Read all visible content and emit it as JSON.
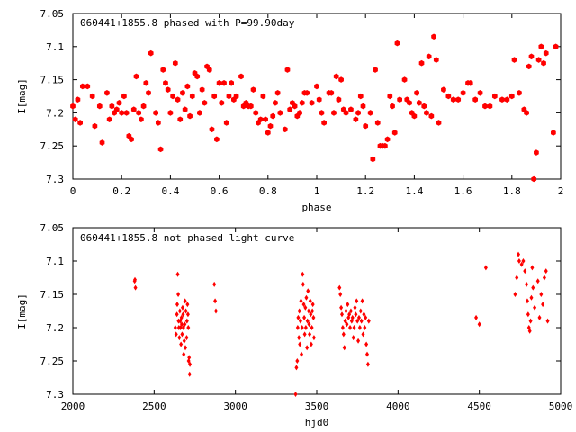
{
  "colors": {
    "points": "#ff0000",
    "axes": "#000000",
    "background": "#ffffff"
  },
  "chart_data": [
    {
      "type": "scatter",
      "title": "060441+1855.8 phased with P=99.90day",
      "xlabel": "phase",
      "ylabel": "I[mag]",
      "xlim": [
        0,
        2
      ],
      "ylim": [
        7.05,
        7.3
      ],
      "y_inverted": true,
      "grid": false,
      "marker": "filled-hexagon",
      "x_ticks": [
        0,
        0.2,
        0.4,
        0.6,
        0.8,
        1,
        1.2,
        1.4,
        1.6,
        1.8,
        2
      ],
      "x_tick_labels": [
        "0",
        "0.2",
        "0.4",
        "0.6",
        "0.8",
        "1",
        "1.2",
        "1.4",
        "1.6",
        "1.8",
        "2"
      ],
      "y_ticks": [
        7.05,
        7.1,
        7.15,
        7.2,
        7.25,
        7.3
      ],
      "y_tick_labels": [
        "7.05",
        "7.1",
        "7.15",
        "7.2",
        "7.25",
        "7.3"
      ],
      "points": [
        [
          0.0,
          7.19
        ],
        [
          0.01,
          7.21
        ],
        [
          0.02,
          7.18
        ],
        [
          0.03,
          7.215
        ],
        [
          0.04,
          7.16
        ],
        [
          0.06,
          7.16
        ],
        [
          0.08,
          7.175
        ],
        [
          0.09,
          7.22
        ],
        [
          0.11,
          7.19
        ],
        [
          0.12,
          7.245
        ],
        [
          0.14,
          7.17
        ],
        [
          0.15,
          7.21
        ],
        [
          0.16,
          7.19
        ],
        [
          0.17,
          7.2
        ],
        [
          0.18,
          7.195
        ],
        [
          0.19,
          7.185
        ],
        [
          0.2,
          7.2
        ],
        [
          0.21,
          7.175
        ],
        [
          0.22,
          7.2
        ],
        [
          0.23,
          7.235
        ],
        [
          0.24,
          7.24
        ],
        [
          0.25,
          7.195
        ],
        [
          0.26,
          7.145
        ],
        [
          0.27,
          7.2
        ],
        [
          0.28,
          7.21
        ],
        [
          0.29,
          7.19
        ],
        [
          0.3,
          7.155
        ],
        [
          0.31,
          7.17
        ],
        [
          0.32,
          7.11
        ],
        [
          0.34,
          7.2
        ],
        [
          0.35,
          7.215
        ],
        [
          0.36,
          7.255
        ],
        [
          0.37,
          7.135
        ],
        [
          0.38,
          7.155
        ],
        [
          0.39,
          7.165
        ],
        [
          0.4,
          7.2
        ],
        [
          0.41,
          7.175
        ],
        [
          0.42,
          7.125
        ],
        [
          0.43,
          7.18
        ],
        [
          0.44,
          7.21
        ],
        [
          0.45,
          7.17
        ],
        [
          0.46,
          7.195
        ],
        [
          0.47,
          7.16
        ],
        [
          0.48,
          7.205
        ],
        [
          0.49,
          7.175
        ],
        [
          0.5,
          7.14
        ],
        [
          0.51,
          7.145
        ],
        [
          0.52,
          7.2
        ],
        [
          0.53,
          7.165
        ],
        [
          0.54,
          7.185
        ],
        [
          0.55,
          7.13
        ],
        [
          0.56,
          7.135
        ],
        [
          0.57,
          7.225
        ],
        [
          0.58,
          7.175
        ],
        [
          0.59,
          7.24
        ],
        [
          0.6,
          7.155
        ],
        [
          0.61,
          7.185
        ],
        [
          0.62,
          7.155
        ],
        [
          0.63,
          7.215
        ],
        [
          0.64,
          7.175
        ],
        [
          0.65,
          7.155
        ],
        [
          0.66,
          7.18
        ],
        [
          0.67,
          7.175
        ],
        [
          0.69,
          7.145
        ],
        [
          0.7,
          7.19
        ],
        [
          0.71,
          7.185
        ],
        [
          0.72,
          7.19
        ],
        [
          0.73,
          7.19
        ],
        [
          0.74,
          7.165
        ],
        [
          0.75,
          7.2
        ],
        [
          0.76,
          7.215
        ],
        [
          0.77,
          7.21
        ],
        [
          0.78,
          7.175
        ],
        [
          0.79,
          7.21
        ],
        [
          0.8,
          7.23
        ],
        [
          0.81,
          7.22
        ],
        [
          0.82,
          7.205
        ],
        [
          0.83,
          7.185
        ],
        [
          0.84,
          7.17
        ],
        [
          0.85,
          7.2
        ],
        [
          0.87,
          7.225
        ],
        [
          0.88,
          7.135
        ],
        [
          0.89,
          7.195
        ],
        [
          0.9,
          7.185
        ],
        [
          0.91,
          7.19
        ],
        [
          0.92,
          7.205
        ],
        [
          0.93,
          7.2
        ],
        [
          0.94,
          7.185
        ],
        [
          0.95,
          7.17
        ],
        [
          0.96,
          7.17
        ],
        [
          0.98,
          7.185
        ],
        [
          1.0,
          7.16
        ],
        [
          1.01,
          7.18
        ],
        [
          1.02,
          7.2
        ],
        [
          1.03,
          7.215
        ],
        [
          1.05,
          7.17
        ],
        [
          1.06,
          7.17
        ],
        [
          1.07,
          7.2
        ],
        [
          1.08,
          7.145
        ],
        [
          1.09,
          7.18
        ],
        [
          1.1,
          7.15
        ],
        [
          1.11,
          7.195
        ],
        [
          1.12,
          7.2
        ],
        [
          1.14,
          7.195
        ],
        [
          1.16,
          7.21
        ],
        [
          1.17,
          7.2
        ],
        [
          1.18,
          7.175
        ],
        [
          1.19,
          7.19
        ],
        [
          1.2,
          7.22
        ],
        [
          1.22,
          7.2
        ],
        [
          1.23,
          7.27
        ],
        [
          1.24,
          7.135
        ],
        [
          1.25,
          7.215
        ],
        [
          1.26,
          7.25
        ],
        [
          1.27,
          7.25
        ],
        [
          1.28,
          7.25
        ],
        [
          1.29,
          7.24
        ],
        [
          1.3,
          7.175
        ],
        [
          1.31,
          7.19
        ],
        [
          1.32,
          7.23
        ],
        [
          1.33,
          7.095
        ],
        [
          1.34,
          7.18
        ],
        [
          1.36,
          7.15
        ],
        [
          1.37,
          7.18
        ],
        [
          1.38,
          7.185
        ],
        [
          1.39,
          7.2
        ],
        [
          1.4,
          7.205
        ],
        [
          1.41,
          7.17
        ],
        [
          1.42,
          7.185
        ],
        [
          1.43,
          7.125
        ],
        [
          1.44,
          7.19
        ],
        [
          1.45,
          7.2
        ],
        [
          1.46,
          7.115
        ],
        [
          1.47,
          7.205
        ],
        [
          1.48,
          7.085
        ],
        [
          1.49,
          7.12
        ],
        [
          1.5,
          7.215
        ],
        [
          1.52,
          7.165
        ],
        [
          1.54,
          7.175
        ],
        [
          1.56,
          7.18
        ],
        [
          1.58,
          7.18
        ],
        [
          1.6,
          7.17
        ],
        [
          1.62,
          7.155
        ],
        [
          1.63,
          7.155
        ],
        [
          1.65,
          7.18
        ],
        [
          1.67,
          7.17
        ],
        [
          1.69,
          7.19
        ],
        [
          1.71,
          7.19
        ],
        [
          1.73,
          7.175
        ],
        [
          1.76,
          7.18
        ],
        [
          1.78,
          7.18
        ],
        [
          1.8,
          7.175
        ],
        [
          1.81,
          7.12
        ],
        [
          1.83,
          7.17
        ],
        [
          1.85,
          7.195
        ],
        [
          1.86,
          7.2
        ],
        [
          1.87,
          7.13
        ],
        [
          1.88,
          7.115
        ],
        [
          1.89,
          7.3
        ],
        [
          1.9,
          7.26
        ],
        [
          1.91,
          7.12
        ],
        [
          1.92,
          7.1
        ],
        [
          1.93,
          7.125
        ],
        [
          1.94,
          7.11
        ],
        [
          1.97,
          7.23
        ],
        [
          1.98,
          7.1
        ]
      ]
    },
    {
      "type": "scatter",
      "title": "060441+1855.8 not phased light curve",
      "xlabel": "hjd0",
      "ylabel": "I[mag]",
      "xlim": [
        2000,
        5000
      ],
      "ylim": [
        7.05,
        7.3
      ],
      "y_inverted": true,
      "grid": false,
      "marker": "small-diamond",
      "x_ticks": [
        2000,
        2500,
        3000,
        3500,
        4000,
        4500,
        5000
      ],
      "x_tick_labels": [
        "2000",
        "2500",
        "3000",
        "3500",
        "4000",
        "4500",
        "5000"
      ],
      "y_ticks": [
        7.05,
        7.1,
        7.15,
        7.2,
        7.25,
        7.3
      ],
      "y_tick_labels": [
        "7.05",
        "7.1",
        "7.15",
        "7.2",
        "7.25",
        "7.3"
      ],
      "points": [
        [
          2380,
          7.13
        ],
        [
          2385,
          7.14
        ],
        [
          2382,
          7.128
        ],
        [
          2630,
          7.2
        ],
        [
          2635,
          7.21
        ],
        [
          2640,
          7.18
        ],
        [
          2642,
          7.165
        ],
        [
          2645,
          7.12
        ],
        [
          2648,
          7.15
        ],
        [
          2650,
          7.19
        ],
        [
          2652,
          7.2
        ],
        [
          2655,
          7.215
        ],
        [
          2658,
          7.175
        ],
        [
          2660,
          7.19
        ],
        [
          2662,
          7.2
        ],
        [
          2665,
          7.225
        ],
        [
          2668,
          7.185
        ],
        [
          2670,
          7.195
        ],
        [
          2672,
          7.21
        ],
        [
          2675,
          7.17
        ],
        [
          2678,
          7.18
        ],
        [
          2680,
          7.2
        ],
        [
          2682,
          7.24
        ],
        [
          2685,
          7.22
        ],
        [
          2688,
          7.195
        ],
        [
          2690,
          7.16
        ],
        [
          2692,
          7.23
        ],
        [
          2695,
          7.175
        ],
        [
          2700,
          7.215
        ],
        [
          2702,
          7.19
        ],
        [
          2705,
          7.165
        ],
        [
          2708,
          7.18
        ],
        [
          2710,
          7.2
        ],
        [
          2712,
          7.25
        ],
        [
          2715,
          7.245
        ],
        [
          2718,
          7.27
        ],
        [
          2720,
          7.255
        ],
        [
          2870,
          7.135
        ],
        [
          2875,
          7.16
        ],
        [
          2880,
          7.175
        ],
        [
          3370,
          7.3
        ],
        [
          3375,
          7.26
        ],
        [
          3380,
          7.25
        ],
        [
          3383,
          7.2
        ],
        [
          3386,
          7.185
        ],
        [
          3390,
          7.215
        ],
        [
          3393,
          7.175
        ],
        [
          3396,
          7.225
        ],
        [
          3400,
          7.19
        ],
        [
          3403,
          7.16
        ],
        [
          3406,
          7.24
        ],
        [
          3410,
          7.2
        ],
        [
          3413,
          7.12
        ],
        [
          3416,
          7.135
        ],
        [
          3420,
          7.165
        ],
        [
          3423,
          7.185
        ],
        [
          3426,
          7.21
        ],
        [
          3430,
          7.17
        ],
        [
          3433,
          7.2
        ],
        [
          3436,
          7.155
        ],
        [
          3440,
          7.23
        ],
        [
          3443,
          7.19
        ],
        [
          3446,
          7.145
        ],
        [
          3450,
          7.175
        ],
        [
          3453,
          7.195
        ],
        [
          3456,
          7.21
        ],
        [
          3460,
          7.16
        ],
        [
          3463,
          7.18
        ],
        [
          3466,
          7.225
        ],
        [
          3470,
          7.2
        ],
        [
          3473,
          7.175
        ],
        [
          3476,
          7.165
        ],
        [
          3480,
          7.185
        ],
        [
          3483,
          7.215
        ],
        [
          3640,
          7.14
        ],
        [
          3645,
          7.15
        ],
        [
          3650,
          7.17
        ],
        [
          3655,
          7.18
        ],
        [
          3660,
          7.2
        ],
        [
          3665,
          7.21
        ],
        [
          3670,
          7.23
        ],
        [
          3675,
          7.19
        ],
        [
          3680,
          7.175
        ],
        [
          3685,
          7.195
        ],
        [
          3690,
          7.165
        ],
        [
          3695,
          7.185
        ],
        [
          3700,
          7.18
        ],
        [
          3705,
          7.2
        ],
        [
          3710,
          7.175
        ],
        [
          3715,
          7.19
        ],
        [
          3720,
          7.185
        ],
        [
          3725,
          7.215
        ],
        [
          3730,
          7.2
        ],
        [
          3735,
          7.17
        ],
        [
          3740,
          7.18
        ],
        [
          3745,
          7.16
        ],
        [
          3750,
          7.19
        ],
        [
          3755,
          7.22
        ],
        [
          3760,
          7.185
        ],
        [
          3765,
          7.2
        ],
        [
          3770,
          7.175
        ],
        [
          3775,
          7.19
        ],
        [
          3780,
          7.16
        ],
        [
          3785,
          7.21
        ],
        [
          3790,
          7.18
        ],
        [
          3795,
          7.2
        ],
        [
          3800,
          7.185
        ],
        [
          3805,
          7.225
        ],
        [
          3810,
          7.24
        ],
        [
          3815,
          7.255
        ],
        [
          3820,
          7.19
        ],
        [
          4480,
          7.185
        ],
        [
          4500,
          7.195
        ],
        [
          4540,
          7.11
        ],
        [
          4720,
          7.15
        ],
        [
          4730,
          7.125
        ],
        [
          4740,
          7.09
        ],
        [
          4745,
          7.1
        ],
        [
          4760,
          7.105
        ],
        [
          4770,
          7.1
        ],
        [
          4780,
          7.115
        ],
        [
          4790,
          7.135
        ],
        [
          4795,
          7.16
        ],
        [
          4800,
          7.18
        ],
        [
          4805,
          7.2
        ],
        [
          4810,
          7.205
        ],
        [
          4815,
          7.19
        ],
        [
          4820,
          7.155
        ],
        [
          4825,
          7.11
        ],
        [
          4830,
          7.14
        ],
        [
          4840,
          7.17
        ],
        [
          4860,
          7.13
        ],
        [
          4870,
          7.185
        ],
        [
          4880,
          7.15
        ],
        [
          4890,
          7.165
        ],
        [
          4900,
          7.125
        ],
        [
          4910,
          7.115
        ],
        [
          4920,
          7.19
        ]
      ]
    }
  ]
}
